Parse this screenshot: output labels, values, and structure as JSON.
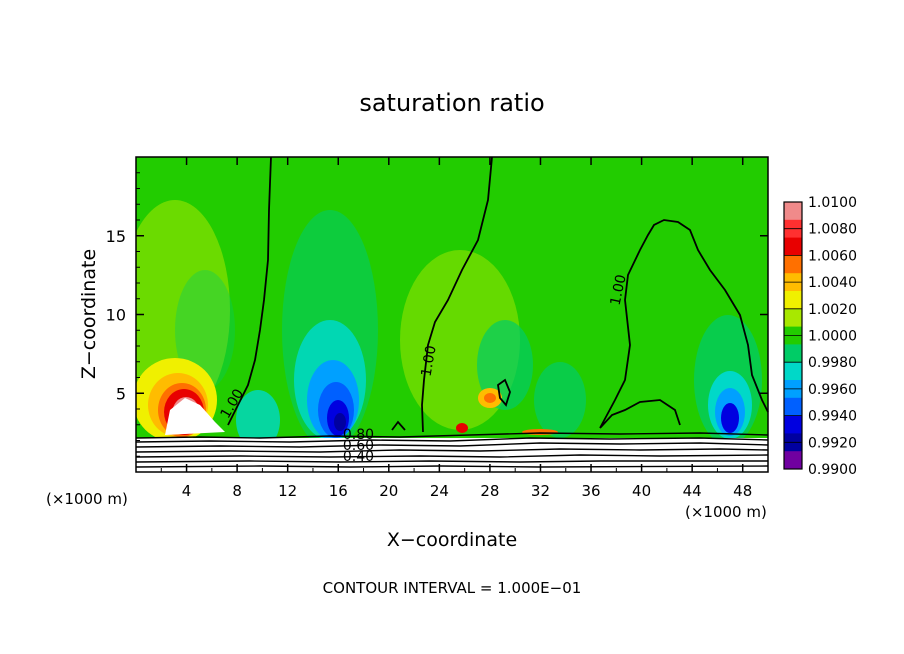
{
  "chart_data": {
    "type": "heatmap",
    "title": "saturation ratio",
    "xlabel": "X−coordinate",
    "ylabel": "Z−coordinate",
    "x_unit_left": "(×1000 m)",
    "x_unit_right": "(×1000 m)",
    "xlim": [
      0,
      50
    ],
    "ylim": [
      0,
      20
    ],
    "xticks": [
      4,
      8,
      12,
      16,
      20,
      24,
      28,
      32,
      36,
      40,
      44,
      48
    ],
    "xtick_labels": [
      "4",
      "8",
      "12",
      "16",
      "20",
      "24",
      "28",
      "32",
      "36",
      "40",
      "44",
      "48"
    ],
    "yticks": [
      5,
      10,
      15
    ],
    "ytick_labels": [
      "5",
      "10",
      "15"
    ],
    "colorbar": {
      "levels": [
        "1.0100",
        "1.0080",
        "1.0060",
        "1.0040",
        "1.0020",
        "1.0000",
        "0.9980",
        "0.9960",
        "0.9940",
        "0.9920",
        "0.9900"
      ],
      "colors": [
        "#f08a8a",
        "#ff3030",
        "#e80000",
        "#ff7000",
        "#ffbc00",
        "#f0f000",
        "#a8e800",
        "#22cc00",
        "#00cc66",
        "#00d8c8",
        "#00a0ff",
        "#0060ff",
        "#0000e0",
        "#0000a0",
        "#7000a0"
      ]
    },
    "contour_labels": [
      {
        "text": "1.00",
        "x": 7.9,
        "z": 4.2,
        "rotate": -60
      },
      {
        "text": "1.00",
        "x": 23.5,
        "z": 7.0,
        "rotate": -80
      },
      {
        "text": "1.00",
        "x": 38.5,
        "z": 11.5,
        "rotate": -78
      },
      {
        "text": "0.80",
        "x": 17.6,
        "z": 2.1,
        "rotate": 0
      },
      {
        "text": "0.60",
        "x": 17.6,
        "z": 1.4,
        "rotate": 0
      },
      {
        "text": "0.40",
        "x": 17.6,
        "z": 0.7,
        "rotate": 0
      }
    ],
    "footer": "CONTOUR INTERVAL = 1.000E−01",
    "legend_position": "right"
  }
}
